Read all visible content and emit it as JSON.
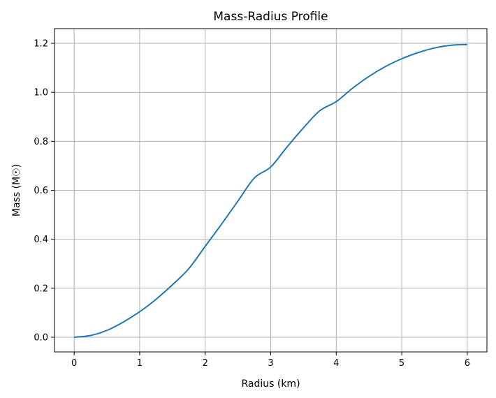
{
  "chart_data": {
    "type": "line",
    "title": "Mass-Radius Profile",
    "xlabel": "Radius (km)",
    "ylabel": "Mass (M☉)",
    "xlim": [
      -0.3,
      6.3
    ],
    "ylim": [
      -0.06,
      1.26
    ],
    "xticks": [
      0,
      1,
      2,
      3,
      4,
      5,
      6
    ],
    "xtick_labels": [
      "0",
      "1",
      "2",
      "3",
      "4",
      "5",
      "6"
    ],
    "yticks": [
      0.0,
      0.2,
      0.4,
      0.6,
      0.8,
      1.0,
      1.2
    ],
    "ytick_labels": [
      "0.0",
      "0.2",
      "0.4",
      "0.6",
      "0.8",
      "1.0",
      "1.2"
    ],
    "grid": true,
    "line_color": "#1f77b4",
    "series": [
      {
        "x": [
          0,
          0.25,
          0.5,
          0.75,
          1.0,
          1.25,
          1.5,
          1.75,
          2.0,
          2.25,
          2.5,
          2.75,
          3.0,
          3.25,
          3.5,
          3.75,
          4.0,
          4.25,
          4.5,
          4.75,
          5.0,
          5.25,
          5.5,
          5.75,
          6.0
        ],
        "y": [
          0.0,
          0.007,
          0.028,
          0.062,
          0.104,
          0.155,
          0.214,
          0.28,
          0.371,
          0.462,
          0.556,
          0.65,
          0.695,
          0.777,
          0.855,
          0.925,
          0.962,
          1.017,
          1.065,
          1.105,
          1.137,
          1.162,
          1.181,
          1.192,
          1.195
        ]
      }
    ]
  }
}
